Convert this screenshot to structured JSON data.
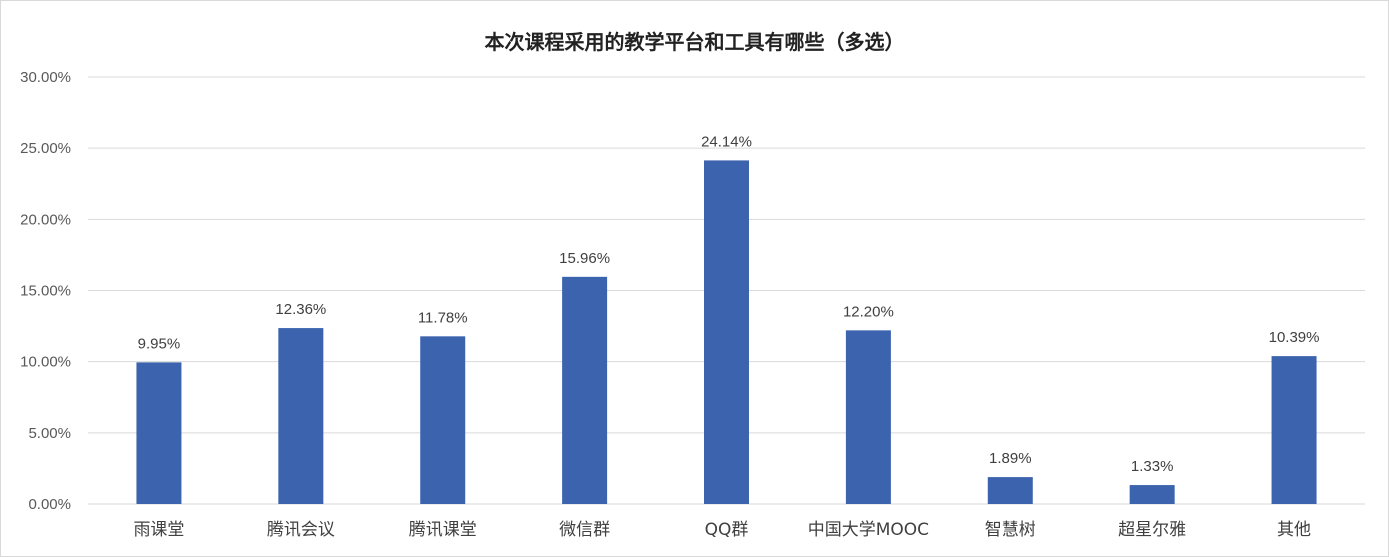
{
  "chart_data": {
    "type": "bar",
    "title": "本次课程采用的教学平台和工具有哪些（多选）",
    "categories": [
      "雨课堂",
      "腾讯会议",
      "腾讯课堂",
      "微信群",
      "QQ群",
      "中国大学MOOC",
      "智慧树",
      "超星尔雅",
      "其他"
    ],
    "values": [
      9.95,
      12.36,
      11.78,
      15.96,
      24.14,
      12.2,
      1.89,
      1.33,
      10.39
    ],
    "data_labels": [
      "9.95%",
      "12.36%",
      "11.78%",
      "15.96%",
      "24.14%",
      "12.20%",
      "1.89%",
      "1.33%",
      "10.39%"
    ],
    "ylim": [
      0,
      30
    ],
    "yticks": [
      "0.00%",
      "5.00%",
      "10.00%",
      "15.00%",
      "20.00%",
      "25.00%",
      "30.00%"
    ],
    "xlabel": "",
    "ylabel": "",
    "grid": true,
    "legend": "none",
    "bar_color": "#3c63ad",
    "grid_color": "#d9d9d9"
  }
}
